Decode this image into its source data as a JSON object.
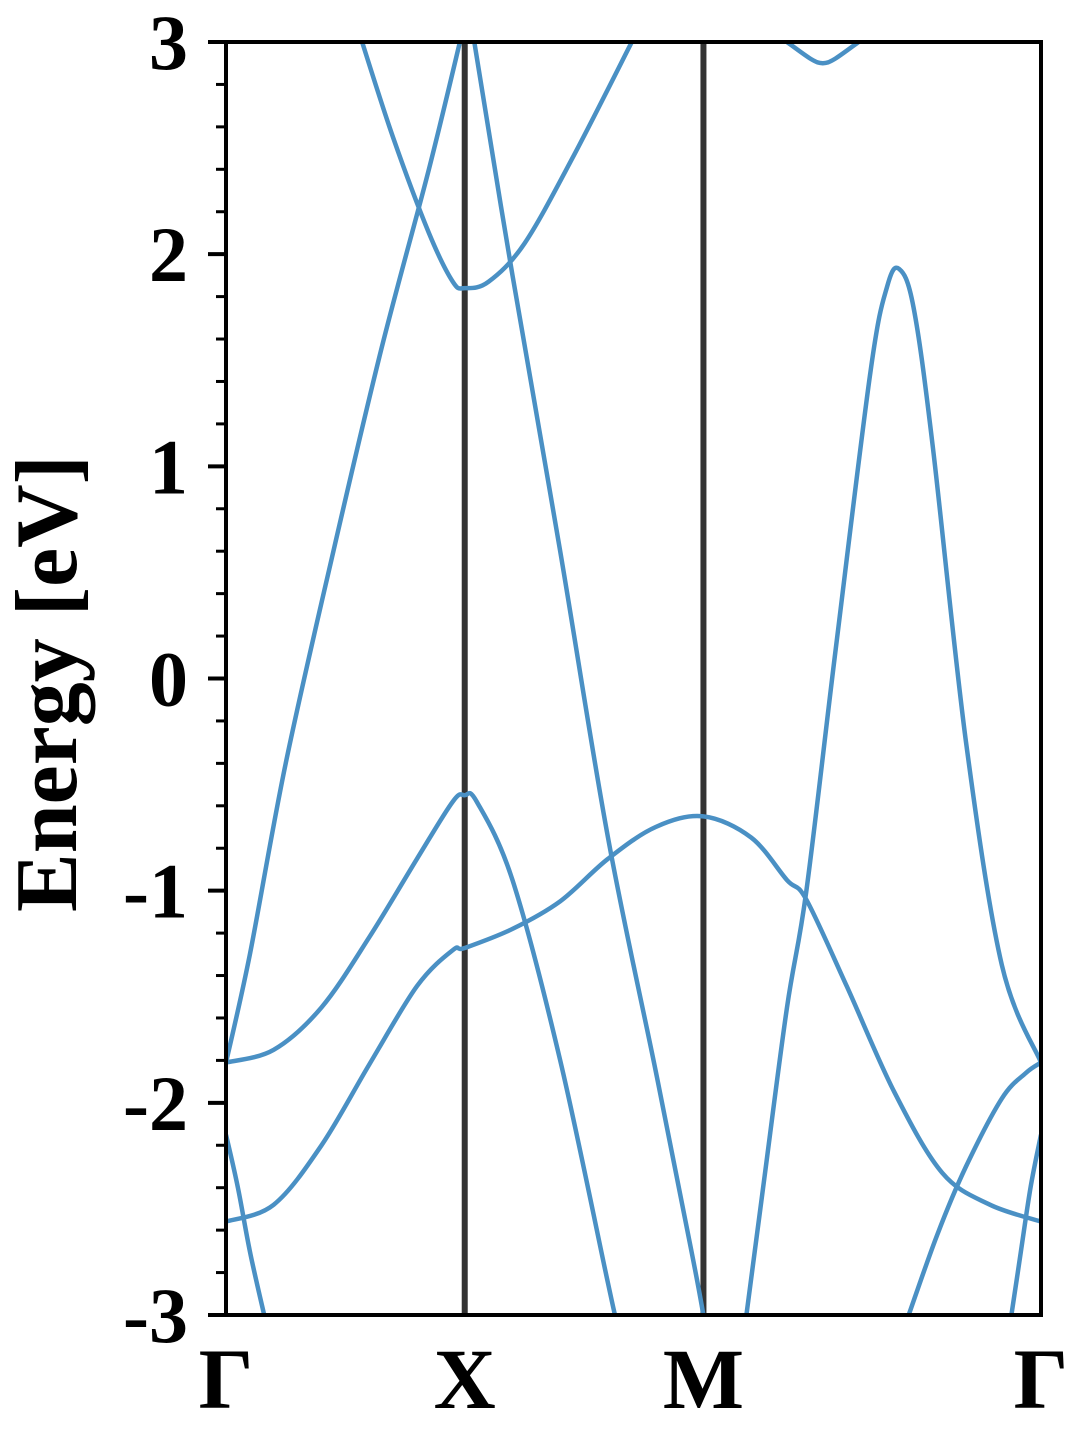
{
  "chart_data": {
    "type": "line",
    "title": "",
    "xlabel": "",
    "ylabel": "Energy [eV]",
    "ylim": [
      -3,
      3
    ],
    "y_ticks": [
      "-3",
      "-2",
      "-1",
      "0",
      "1",
      "2",
      "3"
    ],
    "y_tick_values": [
      -3,
      -2,
      -1,
      0,
      1,
      2,
      3
    ],
    "y_minor_step": 0.2,
    "k_points": [
      {
        "label": "Γ",
        "x": 0
      },
      {
        "label": "X",
        "x": 1
      },
      {
        "label": "M",
        "x": 2
      },
      {
        "label": "Γ",
        "x": 3.414
      }
    ],
    "xlim": [
      0,
      3.414
    ],
    "grid": false,
    "legend": "none",
    "band_color": "#4a90c4",
    "divider_color": "#333333",
    "series": [
      {
        "points": [
          [
            0,
            -1.81
          ],
          [
            0.2,
            -1.75
          ],
          [
            0.4,
            -1.55
          ],
          [
            0.6,
            -1.22
          ],
          [
            0.8,
            -0.85
          ],
          [
            0.95,
            -0.58
          ],
          [
            1,
            -0.55
          ],
          [
            1.05,
            -0.58
          ],
          [
            1.2,
            -0.95
          ],
          [
            1.4,
            -1.8
          ],
          [
            1.6,
            -2.85
          ],
          [
            1.63,
            -3.0
          ]
        ]
      },
      {
        "points": [
          [
            0,
            -2.56
          ],
          [
            0.2,
            -2.48
          ],
          [
            0.4,
            -2.2
          ],
          [
            0.6,
            -1.82
          ],
          [
            0.8,
            -1.45
          ],
          [
            0.95,
            -1.28
          ],
          [
            1,
            -1.27
          ],
          [
            1.2,
            -1.18
          ],
          [
            1.4,
            -1.05
          ],
          [
            1.6,
            -0.85
          ],
          [
            1.8,
            -0.7
          ],
          [
            2,
            -0.65
          ],
          [
            2.2,
            -0.75
          ],
          [
            2.35,
            -0.95
          ],
          [
            2.43,
            -1.04
          ],
          [
            2.6,
            -1.45
          ],
          [
            2.8,
            -1.95
          ],
          [
            3.0,
            -2.33
          ],
          [
            3.2,
            -2.48
          ],
          [
            3.414,
            -2.56
          ]
        ]
      },
      {
        "points": [
          [
            0,
            -2.15
          ],
          [
            0.05,
            -2.4
          ],
          [
            0.1,
            -2.7
          ],
          [
            0.16,
            -3.0
          ]
        ]
      },
      {
        "points": [
          [
            0,
            -1.81
          ],
          [
            0.1,
            -1.3
          ],
          [
            0.25,
            -0.4
          ],
          [
            0.45,
            0.6
          ],
          [
            0.65,
            1.55
          ],
          [
            0.85,
            2.4
          ],
          [
            0.98,
            3.0
          ]
        ]
      },
      {
        "points": [
          [
            0.57,
            3.0
          ],
          [
            0.7,
            2.55
          ],
          [
            0.85,
            2.1
          ],
          [
            0.95,
            1.87
          ],
          [
            1,
            1.84
          ],
          [
            1.1,
            1.87
          ],
          [
            1.25,
            2.05
          ],
          [
            1.45,
            2.45
          ],
          [
            1.7,
            3.0
          ]
        ]
      },
      {
        "points": [
          [
            1.04,
            3.0
          ],
          [
            1.2,
            1.9
          ],
          [
            1.4,
            0.6
          ],
          [
            1.6,
            -0.75
          ],
          [
            1.8,
            -1.85
          ],
          [
            1.95,
            -2.7
          ],
          [
            2.0,
            -3.0
          ]
        ]
      },
      {
        "points": [
          [
            2.18,
            -3.0
          ],
          [
            2.25,
            -2.4
          ],
          [
            2.35,
            -1.55
          ],
          [
            2.43,
            -1.01
          ],
          [
            2.55,
            0.1
          ],
          [
            2.7,
            1.45
          ],
          [
            2.77,
            1.85
          ],
          [
            2.82,
            1.93
          ],
          [
            2.88,
            1.75
          ],
          [
            2.96,
            1.1
          ],
          [
            3.1,
            -0.3
          ],
          [
            3.25,
            -1.35
          ],
          [
            3.414,
            -1.81
          ]
        ]
      },
      {
        "points": [
          [
            2.86,
            -3.0
          ],
          [
            2.98,
            -2.62
          ],
          [
            3.1,
            -2.3
          ],
          [
            3.25,
            -1.98
          ],
          [
            3.35,
            -1.86
          ],
          [
            3.414,
            -1.81
          ]
        ]
      },
      {
        "points": [
          [
            3.29,
            -3.0
          ],
          [
            3.33,
            -2.7
          ],
          [
            3.37,
            -2.4
          ],
          [
            3.414,
            -2.15
          ]
        ]
      },
      {
        "points": [
          [
            2.35,
            3.0
          ],
          [
            2.45,
            2.92
          ],
          [
            2.5,
            2.9
          ],
          [
            2.55,
            2.92
          ],
          [
            2.65,
            3.0
          ]
        ]
      }
    ]
  }
}
